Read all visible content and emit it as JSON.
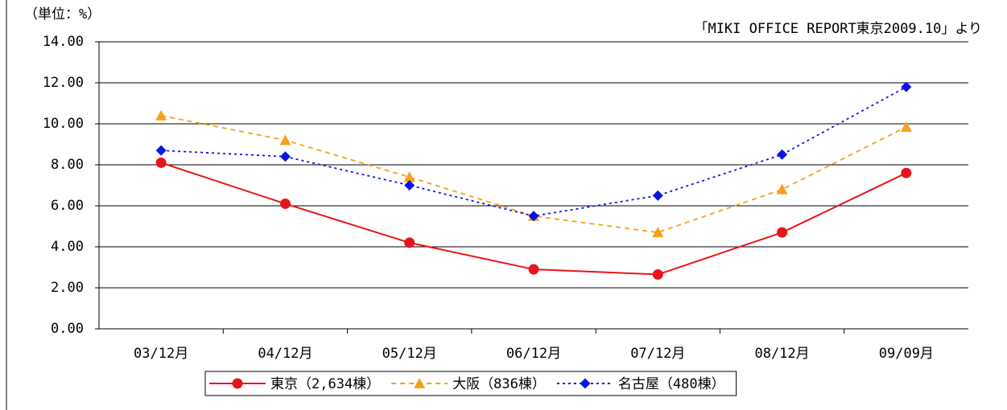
{
  "chart_data": {
    "type": "line",
    "unit_label": "（単位：%）",
    "source": "「MIKI OFFICE REPORT東京2009.10」より",
    "categories": [
      "03/12月",
      "04/12月",
      "05/12月",
      "06/12月",
      "07/12月",
      "08/12月",
      "09/09月"
    ],
    "series": [
      {
        "name": "東京（2,634棟）",
        "color": "#e8141b",
        "marker": "circle",
        "dash": "solid",
        "values": [
          8.1,
          6.1,
          4.2,
          2.9,
          2.65,
          4.7,
          7.6
        ]
      },
      {
        "name": "大阪（836棟）",
        "color": "#f5a11a",
        "marker": "triangle",
        "dash": "dashed",
        "values": [
          10.4,
          9.2,
          7.4,
          5.5,
          4.7,
          6.8,
          9.85
        ]
      },
      {
        "name": "名古屋（480棟）",
        "color": "#0a14e6",
        "marker": "diamond",
        "dash": "dotted",
        "values": [
          8.7,
          8.4,
          7.0,
          5.5,
          6.5,
          8.5,
          11.8
        ]
      }
    ],
    "ylim": [
      0,
      14
    ],
    "yticks": [
      {
        "value": 0,
        "label": "0.00"
      },
      {
        "value": 2,
        "label": "2.00"
      },
      {
        "value": 4,
        "label": "4.00"
      },
      {
        "value": 6,
        "label": "6.00"
      },
      {
        "value": 8,
        "label": "8.00"
      },
      {
        "value": 10,
        "label": "10.00"
      },
      {
        "value": 12,
        "label": "12.00"
      },
      {
        "value": 14,
        "label": "14.00"
      }
    ],
    "grid": true,
    "legend": "bottom"
  }
}
